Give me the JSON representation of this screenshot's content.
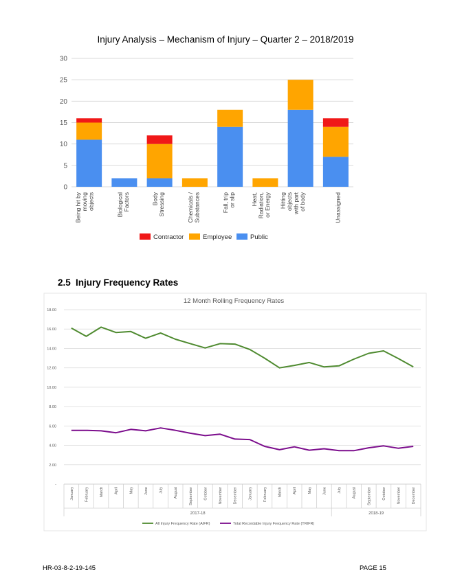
{
  "section": {
    "number": "2.5",
    "title": "Injury Frequency Rates"
  },
  "footer": {
    "doc_ref": "HR-03-8-2-19-145",
    "page": "PAGE 15"
  },
  "chart_data": [
    {
      "type": "bar",
      "stacked": true,
      "title": "Injury Analysis – Mechanism of Injury – Quarter 2 – 2018/2019",
      "categories": [
        [
          "Being hit by",
          "moving",
          "objects"
        ],
        [
          "Biological",
          "Factors"
        ],
        [
          "Body",
          "Stressing"
        ],
        [
          "Chemicals /",
          "Substances"
        ],
        [
          "Fall, trip",
          "or slip"
        ],
        [
          "Heat,",
          "Radiation,",
          "or Energy"
        ],
        [
          "Hitting",
          "objects",
          "with part",
          "of body"
        ],
        [
          "Unassigned"
        ]
      ],
      "series": [
        {
          "name": "Public",
          "color": "#4a8ff0",
          "values": [
            11,
            2,
            2,
            0,
            14,
            0,
            18,
            7
          ]
        },
        {
          "name": "Employee",
          "color": "#ffa500",
          "values": [
            4,
            0,
            8,
            2,
            4,
            2,
            7,
            7
          ]
        },
        {
          "name": "Contractor",
          "color": "#f01818",
          "values": [
            1,
            0,
            2,
            0,
            0,
            0,
            0,
            2
          ]
        }
      ],
      "legend_order": [
        "Contractor",
        "Employee",
        "Public"
      ],
      "ylim": [
        0,
        30
      ],
      "yticks": [
        "0",
        "5",
        "10",
        "15",
        "20",
        "25",
        "30"
      ],
      "legend": "bottom",
      "grid": true
    },
    {
      "type": "line",
      "title": "12 Month Rolling Frequency Rates",
      "x": [
        "January",
        "February",
        "March",
        "April",
        "May",
        "June",
        "July",
        "August",
        "September",
        "October",
        "November",
        "December",
        "January",
        "February",
        "March",
        "April",
        "May",
        "June",
        "July",
        "August",
        "September",
        "October",
        "November",
        "December"
      ],
      "groups": [
        {
          "label": "2017-18",
          "start": 0,
          "end": 18
        },
        {
          "label": "2018-19",
          "start": 18,
          "end": 24
        }
      ],
      "series": [
        {
          "name": "All Injury Frequency Rate (AIFR)",
          "color": "#4e8a2f",
          "values": [
            16.1,
            15.25,
            16.2,
            15.65,
            15.75,
            15.05,
            15.6,
            14.95,
            14.5,
            14.05,
            14.5,
            14.45,
            13.9,
            13.0,
            12.0,
            12.25,
            12.55,
            12.1,
            12.2,
            12.9,
            13.5,
            13.75,
            12.95,
            12.1
          ]
        },
        {
          "name": "Total Recordable Injury Frequency Rate (TRIFR)",
          "color": "#7b0c8c",
          "values": [
            5.55,
            5.55,
            5.5,
            5.3,
            5.65,
            5.5,
            5.8,
            5.55,
            5.25,
            5.0,
            5.15,
            4.65,
            4.6,
            3.9,
            3.55,
            3.85,
            3.5,
            3.65,
            3.45,
            3.45,
            3.75,
            3.95,
            3.7,
            3.9
          ]
        }
      ],
      "ylim": [
        0,
        18
      ],
      "yticks": [
        "-",
        "2.00",
        "4.00",
        "6.00",
        "8.00",
        "10.00",
        "12.00",
        "14.00",
        "16.00",
        "18.00"
      ],
      "legend": "bottom",
      "grid": true
    }
  ]
}
